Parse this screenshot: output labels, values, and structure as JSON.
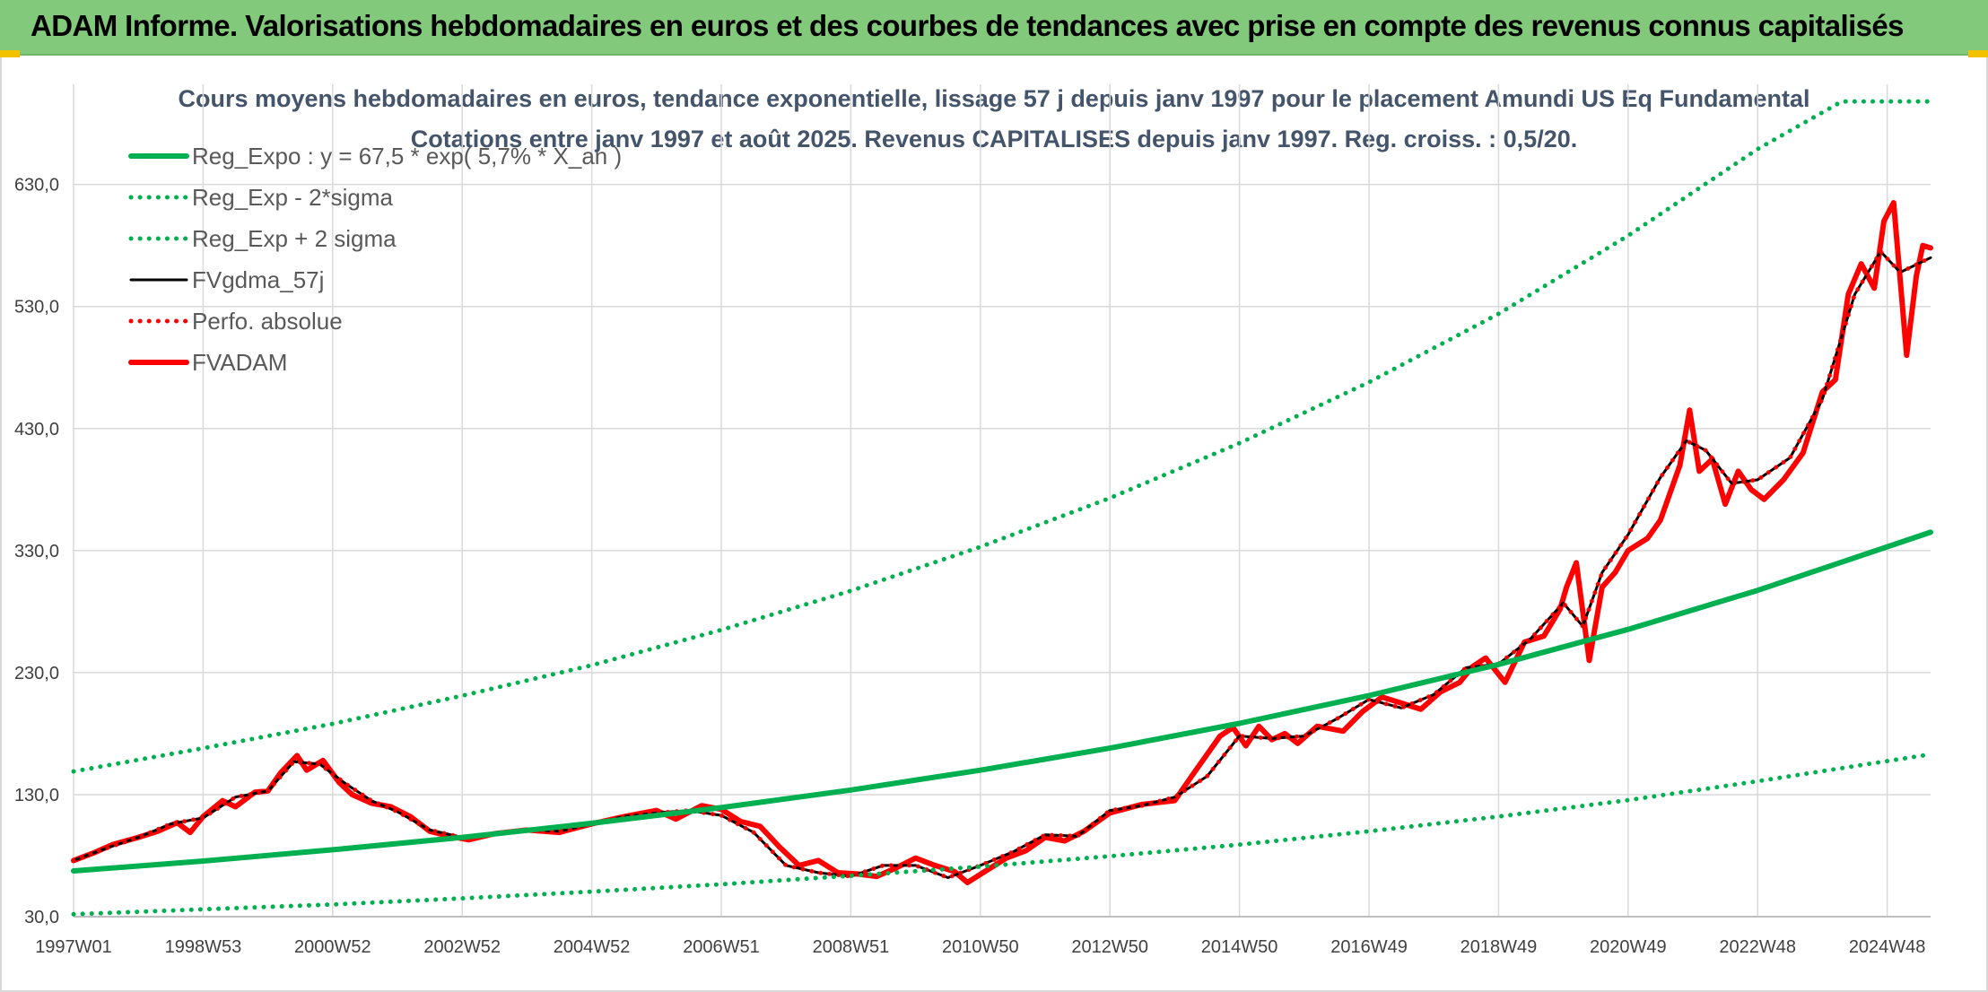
{
  "header": {
    "title": "ADAM Informe. Valorisations hebdomadaires en euros et des courbes de tendances avec prise en compte des revenus connus capitalisés"
  },
  "colors": {
    "banner": "#82c97b",
    "green": "#00b050",
    "red": "#ff0000",
    "black": "#000000",
    "subtitle": "#44546a",
    "grid": "#d9d9d9"
  },
  "chart_data": {
    "type": "line",
    "title_line1": "Cours moyens hebdomadaires en euros, tendance exponentielle, lissage 57 j depuis janv 1997 pour le placement Amundi US Eq Fundamental",
    "title_line2": "Cotations entre janv 1997 et août 2025. Revenus CAPITALISES depuis janv 1997. Reg. croiss. : 0,5/20.",
    "ylim": [
      30,
      690
    ],
    "y_ticks": [
      30,
      130,
      230,
      330,
      430,
      530,
      630
    ],
    "y_tick_labels": [
      "30,0",
      "130,0",
      "230,0",
      "330,0",
      "430,0",
      "530,0",
      "630,0"
    ],
    "xlim": [
      1997.0,
      2025.67
    ],
    "x_ticks": [
      1997.0,
      1999.0,
      2001.0,
      2003.0,
      2005.0,
      2007.0,
      2009.0,
      2011.0,
      2013.0,
      2015.0,
      2017.0,
      2019.0,
      2021.0,
      2023.0,
      2025.0
    ],
    "x_tick_labels": [
      "1997W01",
      "1998W53",
      "2000W52",
      "2002W52",
      "2004W52",
      "2006W51",
      "2008W51",
      "2010W50",
      "2012W50",
      "2014W50",
      "2016W49",
      "2018W49",
      "2020W49",
      "2022W48",
      "2024W48"
    ],
    "grid": true,
    "legend_position": "top-left",
    "series": [
      {
        "name": "Reg_Expo : y = 67,5 * exp( 5,7% *  X_an )",
        "style": "solid-thick",
        "color": "#00b050",
        "x": [
          1997,
          1999,
          2001,
          2003,
          2005,
          2007,
          2009,
          2011,
          2013,
          2015,
          2017,
          2019,
          2021,
          2023,
          2025.67
        ],
        "values": [
          67.5,
          75.6,
          84.8,
          95.0,
          106.5,
          119.4,
          133.8,
          150.0,
          168.1,
          188.4,
          211.2,
          236.7,
          265.4,
          297.4,
          345
        ]
      },
      {
        "name": "Reg_Exp - 2*sigma",
        "style": "dotted",
        "color": "#00b050",
        "x": [
          1997,
          1999,
          2001,
          2003,
          2005,
          2007,
          2009,
          2011,
          2013,
          2015,
          2017,
          2019,
          2021,
          2023,
          2025.67
        ],
        "values": [
          32,
          36,
          40,
          45,
          50.5,
          56.5,
          63.5,
          71,
          79.5,
          89,
          100,
          112,
          125.5,
          141,
          163
        ]
      },
      {
        "name": "Reg_Exp + 2 sigma",
        "style": "dotted",
        "color": "#00b050",
        "x": [
          1997,
          1999,
          2001,
          2003,
          2005,
          2007,
          2009,
          2011,
          2013,
          2015,
          2017,
          2019,
          2021,
          2023,
          2024.3,
          2025.67
        ],
        "values": [
          149,
          168,
          188,
          211,
          236,
          265,
          297,
          333,
          373,
          418,
          468,
          524,
          588,
          659,
          698,
          698
        ]
      },
      {
        "name": "FVgdma_57j",
        "style": "solid",
        "color": "#000000",
        "x": [
          1997,
          1997.5,
          1998,
          1998.5,
          1999,
          1999.5,
          2000,
          2000.4,
          2000.8,
          2001.2,
          2001.6,
          2002,
          2002.5,
          2003,
          2003.5,
          2004,
          2004.5,
          2005,
          2005.5,
          2006,
          2006.5,
          2007,
          2007.5,
          2008,
          2008.5,
          2009,
          2009.5,
          2010,
          2010.5,
          2011,
          2011.5,
          2012,
          2012.5,
          2013,
          2013.5,
          2014,
          2014.5,
          2015,
          2015.5,
          2016,
          2016.5,
          2017,
          2017.5,
          2018,
          2018.5,
          2019,
          2019.5,
          2020,
          2020.3,
          2020.6,
          2021,
          2021.5,
          2021.9,
          2022.2,
          2022.6,
          2023,
          2023.5,
          2024,
          2024.5,
          2024.9,
          2025.2,
          2025.67
        ],
        "values": [
          76,
          86,
          95,
          106,
          111,
          128,
          133,
          157,
          155,
          139,
          125,
          116,
          101,
          95,
          98,
          101,
          100,
          106,
          112,
          115,
          117,
          113,
          99,
          72,
          66,
          63,
          72,
          72,
          62,
          72,
          83,
          97,
          96,
          117,
          121,
          128,
          145,
          178,
          176,
          178,
          192,
          208,
          201,
          212,
          234,
          237,
          258,
          287,
          268,
          312,
          343,
          390,
          420,
          412,
          385,
          388,
          406,
          454,
          540,
          575,
          558,
          570
        ]
      },
      {
        "name": "Perfo. absolue",
        "style": "dotted",
        "color": "#ff0000",
        "x": [
          1997,
          1997.5,
          1998,
          1998.5,
          1999,
          1999.5,
          2000,
          2000.4,
          2000.8,
          2001.2,
          2001.6,
          2002,
          2002.5,
          2003,
          2003.5,
          2004,
          2004.5,
          2005,
          2005.5,
          2006,
          2006.5,
          2007,
          2007.5,
          2008,
          2008.5,
          2009,
          2009.5,
          2010,
          2010.5,
          2011,
          2011.5,
          2012,
          2012.5,
          2013,
          2013.5,
          2014,
          2014.5,
          2015,
          2015.5,
          2016,
          2016.5,
          2017,
          2017.5,
          2018,
          2018.5,
          2019,
          2019.5,
          2020,
          2020.3,
          2020.6,
          2021,
          2021.5,
          2021.9,
          2022.2,
          2022.6,
          2023,
          2023.5,
          2024,
          2024.5,
          2024.9,
          2025.2,
          2025.67
        ],
        "values": [
          76,
          86,
          95,
          106,
          111,
          128,
          133,
          157,
          155,
          139,
          125,
          116,
          101,
          95,
          98,
          101,
          100,
          106,
          112,
          115,
          117,
          113,
          99,
          72,
          66,
          63,
          72,
          72,
          62,
          72,
          83,
          97,
          96,
          117,
          121,
          128,
          145,
          178,
          176,
          178,
          192,
          208,
          201,
          212,
          234,
          237,
          258,
          287,
          268,
          312,
          343,
          390,
          420,
          412,
          385,
          388,
          406,
          454,
          540,
          575,
          558,
          570
        ]
      },
      {
        "name": "FVADAM",
        "style": "solid-thick",
        "color": "#ff0000",
        "x": [
          1997,
          1997.3,
          1997.6,
          1998,
          1998.3,
          1998.6,
          1998.8,
          1999,
          1999.3,
          1999.5,
          1999.8,
          2000,
          2000.2,
          2000.45,
          2000.6,
          2000.85,
          2001.1,
          2001.3,
          2001.6,
          2001.9,
          2002.2,
          2002.5,
          2002.8,
          2003.1,
          2003.5,
          2004,
          2004.5,
          2005,
          2005.5,
          2006,
          2006.3,
          2006.7,
          2007,
          2007.3,
          2007.6,
          2007.9,
          2008.2,
          2008.5,
          2008.8,
          2009.1,
          2009.4,
          2009.7,
          2010,
          2010.3,
          2010.6,
          2010.8,
          2011.1,
          2011.4,
          2011.7,
          2012,
          2012.3,
          2012.6,
          2013,
          2013.5,
          2014,
          2014.3,
          2014.7,
          2014.9,
          2015.1,
          2015.3,
          2015.5,
          2015.7,
          2015.9,
          2016.2,
          2016.6,
          2016.9,
          2017.2,
          2017.5,
          2017.8,
          2018.1,
          2018.4,
          2018.6,
          2018.8,
          2019.1,
          2019.4,
          2019.7,
          2019.95,
          2020.05,
          2020.2,
          2020.4,
          2020.6,
          2020.8,
          2021,
          2021.3,
          2021.5,
          2021.8,
          2021.95,
          2022.1,
          2022.3,
          2022.5,
          2022.7,
          2022.9,
          2023.1,
          2023.4,
          2023.7,
          2024,
          2024.2,
          2024.4,
          2024.6,
          2024.8,
          2024.95,
          2025.1,
          2025.3,
          2025.45,
          2025.55,
          2025.67
        ],
        "values": [
          76,
          82,
          89,
          95,
          100,
          107,
          99,
          112,
          125,
          120,
          132,
          133,
          148,
          162,
          150,
          158,
          140,
          130,
          123,
          120,
          112,
          100,
          96,
          93,
          98,
          101,
          99,
          106,
          112,
          117,
          110,
          121,
          118,
          108,
          104,
          87,
          72,
          76,
          66,
          65,
          63,
          70,
          78,
          72,
          67,
          58,
          68,
          78,
          84,
          95,
          92,
          100,
          115,
          122,
          125,
          148,
          178,
          185,
          170,
          186,
          175,
          180,
          172,
          186,
          182,
          198,
          210,
          205,
          200,
          214,
          222,
          235,
          242,
          222,
          255,
          260,
          282,
          300,
          320,
          240,
          300,
          312,
          330,
          340,
          355,
          400,
          445,
          395,
          405,
          368,
          395,
          380,
          372,
          388,
          410,
          460,
          470,
          540,
          565,
          545,
          600,
          615,
          490,
          555,
          580,
          578
        ]
      }
    ]
  }
}
